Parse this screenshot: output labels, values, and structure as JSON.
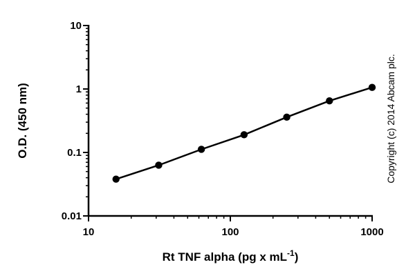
{
  "chart_data": {
    "type": "line",
    "x_scale": "log",
    "y_scale": "log",
    "xlim": [
      10,
      1000
    ],
    "ylim": [
      0.01,
      10
    ],
    "x_ticks": [
      {
        "value": 10,
        "label": "10"
      },
      {
        "value": 100,
        "label": "100"
      },
      {
        "value": 1000,
        "label": "1000"
      }
    ],
    "y_ticks": [
      {
        "value": 10,
        "label": "10"
      },
      {
        "value": 1,
        "label": "1"
      },
      {
        "value": 0.1,
        "label": "0.1"
      },
      {
        "value": 0.01,
        "label": "0.01"
      }
    ],
    "xlabel": "Rt TNF alpha (pg x mL",
    "xlabel_superscript": "-1",
    "xlabel_suffix": ")",
    "ylabel": "O.D. (450 nm)",
    "grid": false,
    "series": [
      {
        "marker": "circle",
        "color": "#000000",
        "x": [
          15.625,
          31.25,
          62.5,
          125,
          250,
          500,
          1000
        ],
        "y": [
          0.038,
          0.063,
          0.112,
          0.19,
          0.36,
          0.65,
          1.06
        ]
      }
    ]
  },
  "copyright": "Copyright (c) 2014 Abcam plc."
}
